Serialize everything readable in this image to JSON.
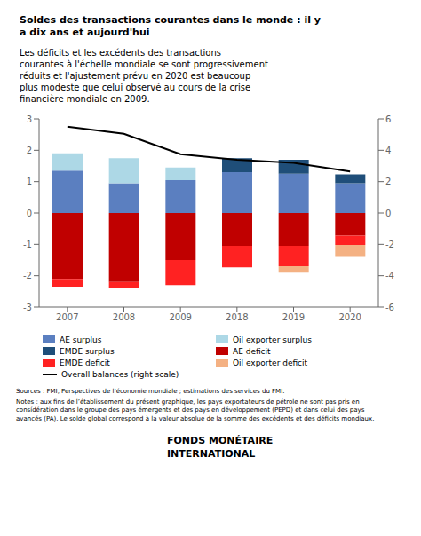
{
  "chart_data": {
    "type": "bar",
    "title": "Soldes des transactions courantes dans le monde : il y\na dix ans et aujourd'hui",
    "subtitle": "Les déficits et les excédents des transactions\ncourantes à l'échelle mondiale se sont progressivement\nréduits et l'ajustement prévu en 2020 est beaucoup\nplus modeste que celui observé au cours de la crise\nfinancière mondiale en 2009.",
    "categories": [
      "2007",
      "2008",
      "2009",
      "2018",
      "2019",
      "2020"
    ],
    "series": [
      {
        "name": "AE surplus",
        "color": "#5B7FC0",
        "values": [
          1.35,
          0.95,
          1.05,
          1.3,
          1.25,
          0.95
        ]
      },
      {
        "name": "Oil exporter surplus",
        "color": "#ADD8E6",
        "values": [
          0.55,
          0.8,
          0.4,
          0.0,
          0.0,
          0.0
        ]
      },
      {
        "name": "EMDE surplus",
        "color": "#1F4E79",
        "values": [
          0.0,
          0.0,
          0.0,
          0.45,
          0.45,
          0.28
        ]
      },
      {
        "name": "AE deficit",
        "color": "#C00000",
        "values": [
          -2.1,
          -2.2,
          -1.5,
          -1.05,
          -1.05,
          -0.72
        ]
      },
      {
        "name": "EMDE deficit",
        "color": "#FF2222",
        "values": [
          -0.25,
          -0.2,
          -0.8,
          -0.68,
          -0.65,
          -0.3
        ]
      },
      {
        "name": "Oil exporter deficit",
        "color": "#F4B183",
        "values": [
          0.0,
          0.0,
          0.0,
          0.0,
          -0.2,
          -0.38
        ]
      },
      {
        "name": "Overall balances (right scale)",
        "type": "line",
        "axis": "y2",
        "color": "#000000",
        "values": [
          5.5,
          5.05,
          3.75,
          3.4,
          3.2,
          2.65
        ]
      }
    ],
    "stacked": true,
    "ylim": [
      -3,
      3
    ],
    "yticks": [
      -3,
      -2,
      -1,
      0,
      1,
      2,
      3
    ],
    "y2lim": [
      -6,
      6
    ],
    "y2ticks": [
      -6,
      -4,
      -2,
      0,
      2,
      4,
      6
    ],
    "grid": false,
    "legend": "bottom",
    "annotations": [
      "Sources : FMI, Perspectives de l’économie mondiale ; estimations des services du FMI.",
      "Notes : aux fins de l’établissement du présent graphique, les pays exportateurs de pétrole ne sont pas pris en\nconsídération dans le groupe des pays émergents et des pays en développement (PEPD) et dans celui des pays\navancés (PA). Le solde global correspond à la valeur absolue de la somme des excédents et des déficits mondiaux.",
      "FONDS MONÉTAIRE",
      "INTERNATIONAL"
    ]
  }
}
